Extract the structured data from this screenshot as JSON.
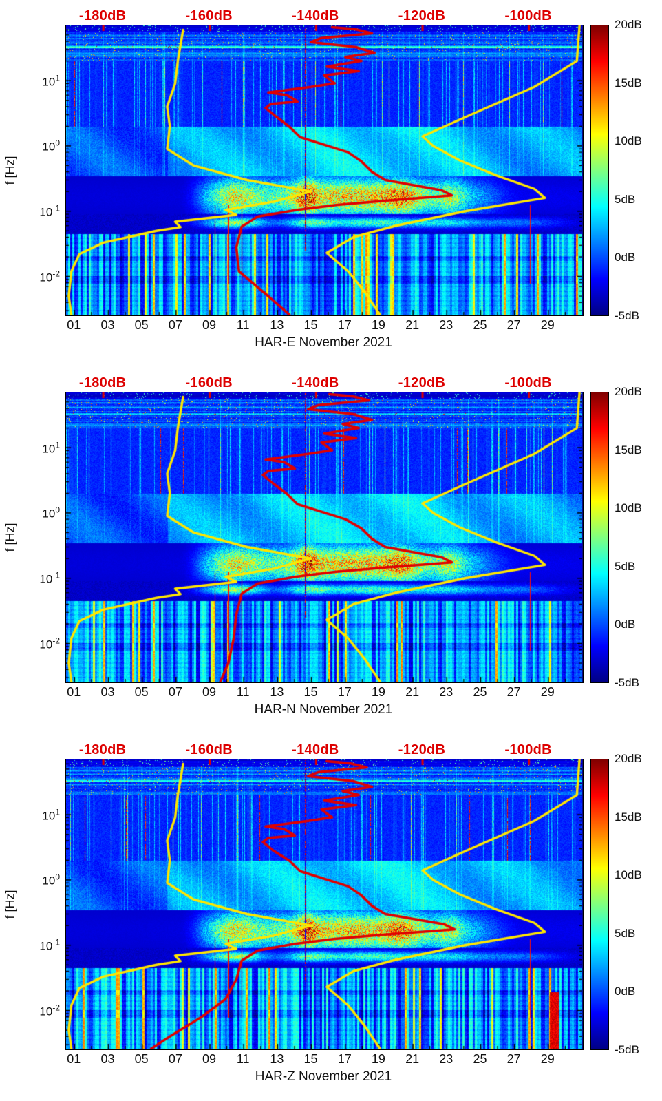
{
  "styles": {
    "curve_yellow": "#ffe600",
    "curve_red": "#e00000",
    "axis_color": "#000000",
    "top_axis_color": "#dd0000"
  },
  "chart_data": [
    {
      "type": "heatmap",
      "station": "HAR-E",
      "title": "HAR-E November 2021",
      "ylabel": "f [Hz]",
      "colormap": "jet",
      "value_unit": "dB",
      "value_range_db": [
        -5,
        20
      ],
      "texture_seed": 101,
      "x_axis": {
        "range_days": [
          0.5,
          31
        ],
        "tick_labels": [
          "01",
          "03",
          "05",
          "07",
          "09",
          "11",
          "13",
          "15",
          "17",
          "19",
          "21",
          "23",
          "25",
          "27",
          "29"
        ],
        "tick_days": [
          1,
          3,
          5,
          7,
          9,
          11,
          13,
          15,
          17,
          19,
          21,
          23,
          25,
          27,
          29
        ],
        "minor_tick_days": [
          2,
          4,
          6,
          8,
          10,
          12,
          14,
          16,
          18,
          20,
          22,
          24,
          26,
          28,
          30
        ]
      },
      "y_axis": {
        "range_hz": [
          0.0026,
          70
        ],
        "tick_exponents": [
          1,
          0,
          -1,
          -2
        ]
      },
      "top_axis": {
        "range_db": [
          -187,
          -90
        ],
        "tick_db": [
          -180,
          -160,
          -140,
          -120,
          -100
        ],
        "tick_labels": [
          "-180dB",
          "-160dB",
          "-140dB",
          "-120dB",
          "-100dB"
        ]
      },
      "colorbar": {
        "tick_labels": [
          "20dB",
          "15dB",
          "10dB",
          "5dB",
          "0dB",
          "-5dB"
        ],
        "tick_values": [
          20,
          15,
          10,
          5,
          0,
          -5
        ]
      },
      "overlays": {
        "low_noise_model_yellow": [
          [
            0.0026,
            -186
          ],
          [
            0.005,
            -186.5
          ],
          [
            0.012,
            -186
          ],
          [
            0.022,
            -184.5
          ],
          [
            0.033,
            -180
          ],
          [
            0.05,
            -170
          ],
          [
            0.057,
            -165.5
          ],
          [
            0.069,
            -166.5
          ],
          [
            0.088,
            -155
          ],
          [
            0.105,
            -157
          ],
          [
            0.14,
            -148
          ],
          [
            0.2,
            -141
          ],
          [
            0.3,
            -153
          ],
          [
            0.5,
            -163
          ],
          [
            0.9,
            -168
          ],
          [
            2,
            -167.5
          ],
          [
            4,
            -168
          ],
          [
            9,
            -166.5
          ],
          [
            20,
            -166
          ],
          [
            60,
            -165
          ]
        ],
        "high_noise_model_yellow": [
          [
            0.0026,
            -128
          ],
          [
            0.006,
            -131
          ],
          [
            0.012,
            -134
          ],
          [
            0.023,
            -138
          ],
          [
            0.04,
            -133
          ],
          [
            0.06,
            -125
          ],
          [
            0.1,
            -112
          ],
          [
            0.16,
            -97
          ],
          [
            0.22,
            -99
          ],
          [
            0.35,
            -106
          ],
          [
            0.6,
            -113
          ],
          [
            1.0,
            -118
          ],
          [
            1.4,
            -120
          ],
          [
            3,
            -111
          ],
          [
            8,
            -99
          ],
          [
            20,
            -91
          ],
          [
            70,
            -90.5
          ]
        ],
        "psd_mode_red": [
          [
            0.0026,
            -145
          ],
          [
            0.005,
            -149
          ],
          [
            0.012,
            -154.5
          ],
          [
            0.028,
            -155
          ],
          [
            0.058,
            -154
          ],
          [
            0.083,
            -151
          ],
          [
            0.105,
            -143.5
          ],
          [
            0.125,
            -136
          ],
          [
            0.145,
            -127
          ],
          [
            0.175,
            -114.5
          ],
          [
            0.21,
            -116.5
          ],
          [
            0.3,
            -127
          ],
          [
            0.4,
            -129.5
          ],
          [
            0.58,
            -131.5
          ],
          [
            0.8,
            -134
          ],
          [
            1.36,
            -143
          ],
          [
            1.96,
            -145
          ],
          [
            2.8,
            -147.5
          ],
          [
            3.8,
            -149.5
          ],
          [
            4.4,
            -148.5
          ],
          [
            4.8,
            -143.5
          ],
          [
            6.0,
            -145.5
          ],
          [
            6.6,
            -149
          ],
          [
            8.0,
            -141
          ],
          [
            9.1,
            -136.5
          ],
          [
            12,
            -138.5
          ],
          [
            14,
            -132
          ],
          [
            16.4,
            -138
          ],
          [
            20,
            -131.5
          ],
          [
            23,
            -134.5
          ],
          [
            26.7,
            -129
          ],
          [
            32.6,
            -132.5
          ],
          [
            38.8,
            -141
          ],
          [
            45,
            -139
          ],
          [
            53,
            -129.5
          ],
          [
            61,
            -132.5
          ],
          [
            66,
            -137
          ]
        ]
      }
    },
    {
      "type": "heatmap",
      "station": "HAR-N",
      "title": "HAR-N November 2021",
      "ylabel": "f [Hz]",
      "colormap": "jet",
      "value_unit": "dB",
      "value_range_db": [
        -5,
        20
      ],
      "texture_seed": 202,
      "x_axis": {
        "range_days": [
          0.5,
          31
        ],
        "tick_labels": [
          "01",
          "03",
          "05",
          "07",
          "09",
          "11",
          "13",
          "15",
          "17",
          "19",
          "21",
          "23",
          "25",
          "27",
          "29"
        ],
        "tick_days": [
          1,
          3,
          5,
          7,
          9,
          11,
          13,
          15,
          17,
          19,
          21,
          23,
          25,
          27,
          29
        ],
        "minor_tick_days": [
          2,
          4,
          6,
          8,
          10,
          12,
          14,
          16,
          18,
          20,
          22,
          24,
          26,
          28,
          30
        ]
      },
      "y_axis": {
        "range_hz": [
          0.0026,
          70
        ],
        "tick_exponents": [
          1,
          0,
          -1,
          -2
        ]
      },
      "top_axis": {
        "range_db": [
          -187,
          -90
        ],
        "tick_db": [
          -180,
          -160,
          -140,
          -120,
          -100
        ],
        "tick_labels": [
          "-180dB",
          "-160dB",
          "-140dB",
          "-120dB",
          "-100dB"
        ]
      },
      "colorbar": {
        "tick_labels": [
          "20dB",
          "15dB",
          "10dB",
          "5dB",
          "0dB",
          "-5dB"
        ],
        "tick_values": [
          20,
          15,
          10,
          5,
          0,
          -5
        ]
      },
      "overlays": {
        "low_noise_model_yellow": [
          [
            0.0026,
            -186
          ],
          [
            0.005,
            -186.5
          ],
          [
            0.012,
            -186
          ],
          [
            0.022,
            -184.5
          ],
          [
            0.033,
            -180
          ],
          [
            0.05,
            -170
          ],
          [
            0.057,
            -165.5
          ],
          [
            0.069,
            -166.5
          ],
          [
            0.088,
            -155
          ],
          [
            0.105,
            -157
          ],
          [
            0.14,
            -148
          ],
          [
            0.2,
            -141
          ],
          [
            0.3,
            -153
          ],
          [
            0.5,
            -163
          ],
          [
            0.9,
            -168
          ],
          [
            2,
            -167.5
          ],
          [
            4,
            -168
          ],
          [
            9,
            -166.5
          ],
          [
            20,
            -166
          ],
          [
            60,
            -165
          ]
        ],
        "high_noise_model_yellow": [
          [
            0.0026,
            -128
          ],
          [
            0.006,
            -131
          ],
          [
            0.012,
            -134
          ],
          [
            0.023,
            -138
          ],
          [
            0.04,
            -133
          ],
          [
            0.06,
            -125
          ],
          [
            0.1,
            -112
          ],
          [
            0.16,
            -97
          ],
          [
            0.22,
            -99
          ],
          [
            0.35,
            -106
          ],
          [
            0.6,
            -113
          ],
          [
            1.0,
            -118
          ],
          [
            1.4,
            -120
          ],
          [
            3,
            -111
          ],
          [
            8,
            -99
          ],
          [
            20,
            -91
          ],
          [
            70,
            -90.5
          ]
        ],
        "psd_mode_red": [
          [
            0.0026,
            -158
          ],
          [
            0.005,
            -156.5
          ],
          [
            0.012,
            -155.5
          ],
          [
            0.028,
            -155
          ],
          [
            0.058,
            -154
          ],
          [
            0.083,
            -151
          ],
          [
            0.105,
            -144
          ],
          [
            0.125,
            -136.5
          ],
          [
            0.145,
            -127.5
          ],
          [
            0.175,
            -114.5
          ],
          [
            0.21,
            -116.5
          ],
          [
            0.3,
            -127
          ],
          [
            0.4,
            -129.5
          ],
          [
            0.58,
            -131.5
          ],
          [
            0.8,
            -134.5
          ],
          [
            1.36,
            -143.5
          ],
          [
            1.96,
            -145.5
          ],
          [
            2.8,
            -148
          ],
          [
            3.8,
            -150
          ],
          [
            4.4,
            -149
          ],
          [
            4.8,
            -144
          ],
          [
            6.0,
            -146
          ],
          [
            6.6,
            -149.5
          ],
          [
            8.0,
            -141.5
          ],
          [
            9.1,
            -137
          ],
          [
            12,
            -139
          ],
          [
            14,
            -132.5
          ],
          [
            16.4,
            -138.5
          ],
          [
            20,
            -132
          ],
          [
            23,
            -135
          ],
          [
            26.7,
            -129.5
          ],
          [
            32.6,
            -133
          ],
          [
            38.8,
            -141.5
          ],
          [
            45,
            -139.5
          ],
          [
            53,
            -130
          ],
          [
            61,
            -133
          ],
          [
            66,
            -137.5
          ]
        ]
      }
    },
    {
      "type": "heatmap",
      "station": "HAR-Z",
      "title": "HAR-Z November 2021",
      "ylabel": "f [Hz]",
      "colormap": "jet",
      "value_unit": "dB",
      "value_range_db": [
        -5,
        20
      ],
      "texture_seed": 303,
      "x_axis": {
        "range_days": [
          0.5,
          31
        ],
        "tick_labels": [
          "01",
          "03",
          "05",
          "07",
          "09",
          "11",
          "13",
          "15",
          "17",
          "19",
          "21",
          "23",
          "25",
          "27",
          "29"
        ],
        "tick_days": [
          1,
          3,
          5,
          7,
          9,
          11,
          13,
          15,
          17,
          19,
          21,
          23,
          25,
          27,
          29
        ],
        "minor_tick_days": [
          2,
          4,
          6,
          8,
          10,
          12,
          14,
          16,
          18,
          20,
          22,
          24,
          26,
          28,
          30
        ]
      },
      "y_axis": {
        "range_hz": [
          0.0026,
          70
        ],
        "tick_exponents": [
          1,
          0,
          -1,
          -2
        ]
      },
      "top_axis": {
        "range_db": [
          -187,
          -90
        ],
        "tick_db": [
          -180,
          -160,
          -140,
          -120,
          -100
        ],
        "tick_labels": [
          "-180dB",
          "-160dB",
          "-140dB",
          "-120dB",
          "-100dB"
        ]
      },
      "colorbar": {
        "tick_labels": [
          "20dB",
          "15dB",
          "10dB",
          "5dB",
          "0dB",
          "-5dB"
        ],
        "tick_values": [
          20,
          15,
          10,
          5,
          0,
          -5
        ]
      },
      "overlays": {
        "low_noise_model_yellow": [
          [
            0.0026,
            -186
          ],
          [
            0.005,
            -186.5
          ],
          [
            0.012,
            -186
          ],
          [
            0.022,
            -184.5
          ],
          [
            0.033,
            -180
          ],
          [
            0.05,
            -170
          ],
          [
            0.057,
            -165.5
          ],
          [
            0.069,
            -166.5
          ],
          [
            0.088,
            -155
          ],
          [
            0.105,
            -157
          ],
          [
            0.14,
            -148
          ],
          [
            0.2,
            -141
          ],
          [
            0.3,
            -153
          ],
          [
            0.5,
            -163
          ],
          [
            0.9,
            -168
          ],
          [
            2,
            -167.5
          ],
          [
            4,
            -168
          ],
          [
            9,
            -166.5
          ],
          [
            20,
            -166
          ],
          [
            60,
            -165
          ]
        ],
        "high_noise_model_yellow": [
          [
            0.0026,
            -128
          ],
          [
            0.006,
            -131
          ],
          [
            0.012,
            -134
          ],
          [
            0.023,
            -138
          ],
          [
            0.04,
            -133
          ],
          [
            0.06,
            -125
          ],
          [
            0.1,
            -112
          ],
          [
            0.16,
            -97
          ],
          [
            0.22,
            -99
          ],
          [
            0.35,
            -106
          ],
          [
            0.6,
            -113
          ],
          [
            1.0,
            -118
          ],
          [
            1.4,
            -120
          ],
          [
            3,
            -111
          ],
          [
            8,
            -99
          ],
          [
            20,
            -91
          ],
          [
            70,
            -90.5
          ]
        ],
        "psd_mode_red": [
          [
            0.0026,
            -171
          ],
          [
            0.004,
            -167.5
          ],
          [
            0.008,
            -161.5
          ],
          [
            0.015,
            -157
          ],
          [
            0.03,
            -155
          ],
          [
            0.058,
            -154
          ],
          [
            0.083,
            -151
          ],
          [
            0.105,
            -144
          ],
          [
            0.125,
            -136.5
          ],
          [
            0.145,
            -127.5
          ],
          [
            0.175,
            -114
          ],
          [
            0.21,
            -116
          ],
          [
            0.3,
            -127
          ],
          [
            0.4,
            -129.5
          ],
          [
            0.58,
            -131.5
          ],
          [
            0.8,
            -134
          ],
          [
            1.36,
            -143
          ],
          [
            1.96,
            -145
          ],
          [
            2.8,
            -148
          ],
          [
            3.8,
            -150
          ],
          [
            4.4,
            -149
          ],
          [
            4.8,
            -144
          ],
          [
            6.0,
            -146
          ],
          [
            6.6,
            -149.5
          ],
          [
            8.0,
            -141.5
          ],
          [
            9.1,
            -137
          ],
          [
            12,
            -139
          ],
          [
            14,
            -132.5
          ],
          [
            16.4,
            -138.5
          ],
          [
            20,
            -132
          ],
          [
            23,
            -135
          ],
          [
            26.7,
            -129.5
          ],
          [
            32.6,
            -133
          ],
          [
            38.8,
            -141.5
          ],
          [
            45,
            -139.5
          ],
          [
            53,
            -130.5
          ],
          [
            61,
            -133.5
          ],
          [
            66,
            -138
          ]
        ]
      }
    }
  ]
}
